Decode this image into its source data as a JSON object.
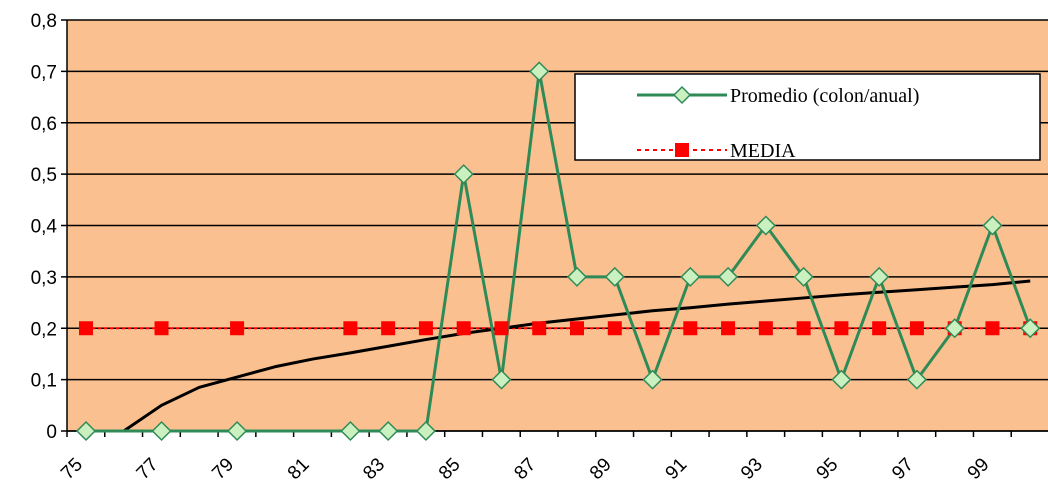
{
  "chart_data": {
    "type": "line",
    "x": [
      75,
      76,
      77,
      78,
      79,
      80,
      81,
      82,
      83,
      84,
      85,
      86,
      87,
      88,
      89,
      90,
      91,
      92,
      93,
      94,
      95,
      96,
      97,
      98,
      99,
      100
    ],
    "x_tick_labels": [
      "75",
      "77",
      "79",
      "81",
      "83",
      "85",
      "87",
      "89",
      "91",
      "93",
      "95",
      "97",
      "99"
    ],
    "y_tick_labels": [
      "0",
      "0,1",
      "0,2",
      "0,3",
      "0,4",
      "0,5",
      "0,6",
      "0,7",
      "0,8"
    ],
    "ylim": [
      0,
      0.8
    ],
    "grid": "horizontal",
    "legend_position": "top-right",
    "series": [
      {
        "name": "Promedio (colon/anual)",
        "color": "#2e8b57",
        "marker": "diamond",
        "values": [
          0,
          null,
          0,
          null,
          0,
          null,
          null,
          0,
          0,
          0,
          0.5,
          0.1,
          0.7,
          0.3,
          0.3,
          0.1,
          0.3,
          0.3,
          0.4,
          0.3,
          0.1,
          0.3,
          0.1,
          0.2,
          0.4,
          0.2
        ]
      },
      {
        "name": "MEDIA",
        "color": "#ff0000",
        "marker": "square",
        "style": "dotted",
        "values": [
          0.2,
          null,
          0.2,
          null,
          0.2,
          null,
          null,
          0.2,
          0.2,
          0.2,
          0.2,
          0.2,
          0.2,
          0.2,
          0.2,
          0.2,
          0.2,
          0.2,
          0.2,
          0.2,
          0.2,
          0.2,
          0.2,
          0.2,
          0.2,
          0.2
        ]
      },
      {
        "type": "trendline",
        "color": "#000000",
        "x": [
          76,
          77,
          78,
          79,
          80,
          81,
          82,
          83,
          84,
          85,
          86,
          87,
          88,
          89,
          90,
          91,
          92,
          93,
          94,
          95,
          96,
          97,
          98,
          99,
          100
        ],
        "values": [
          0,
          0.05,
          0.085,
          0.105,
          0.125,
          0.14,
          0.152,
          0.165,
          0.178,
          0.19,
          0.2,
          0.21,
          0.218,
          0.226,
          0.234,
          0.24,
          0.247,
          0.253,
          0.259,
          0.265,
          0.27,
          0.275,
          0.28,
          0.285,
          0.292
        ]
      }
    ]
  }
}
